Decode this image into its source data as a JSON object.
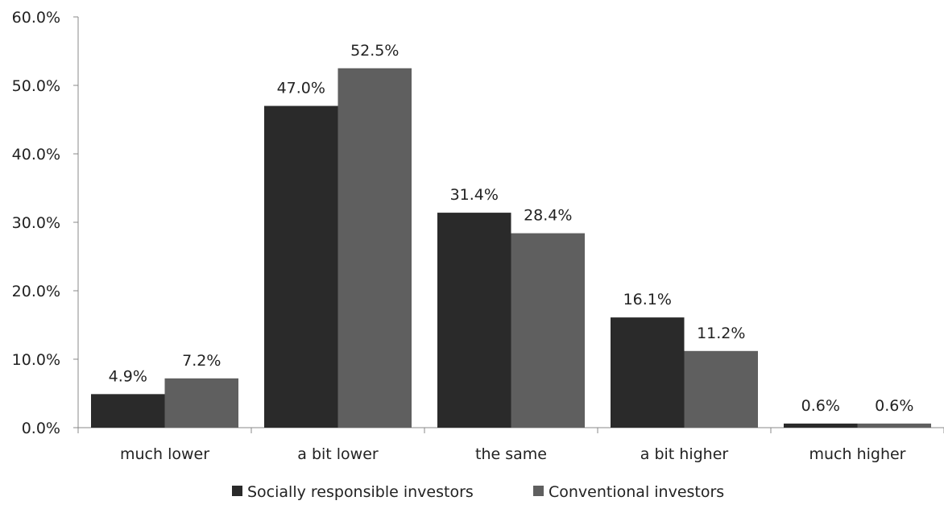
{
  "chart_data": {
    "type": "bar",
    "categories": [
      "much lower",
      "a bit lower",
      "the same",
      "a bit higher",
      "much higher"
    ],
    "series": [
      {
        "name": "Socially responsible investors",
        "values": [
          4.9,
          47.0,
          31.4,
          16.1,
          0.6
        ],
        "labels": [
          "4.9%",
          "47.0%",
          "31.4%",
          "16.1%",
          "0.6%"
        ],
        "color": "#2a2a2a"
      },
      {
        "name": "Conventional investors",
        "values": [
          7.2,
          52.5,
          28.4,
          11.2,
          0.6
        ],
        "labels": [
          "7.2%",
          "52.5%",
          "28.4%",
          "11.2%",
          "0.6%"
        ],
        "color": "#5f5f5f"
      }
    ],
    "yticks": [
      "0.0%",
      "10.0%",
      "20.0%",
      "30.0%",
      "40.0%",
      "50.0%",
      "60.0%"
    ],
    "ylim": [
      0,
      60
    ],
    "grid": false,
    "legend": "bottom",
    "title": "",
    "xlabel": "",
    "ylabel": ""
  }
}
